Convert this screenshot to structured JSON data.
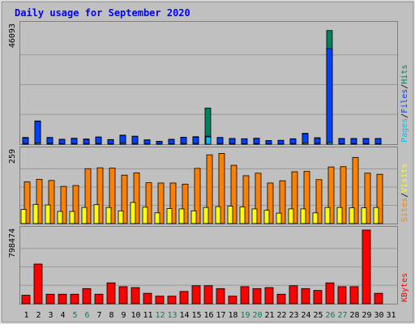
{
  "title": "Daily usage for September 2020",
  "colors": {
    "frame": "#c0c0c0",
    "plot_bg": "#c0c0c0",
    "grid": "#9a9a9a",
    "title": "#0000ff",
    "hits": "#00805c",
    "files": "#0040ff",
    "pages": "#00c0ff",
    "visits": "#ffff00",
    "sites": "#ff8000",
    "kbytes": "#ff0000",
    "axis_label": "#000000",
    "weekend_label": "#00805c"
  },
  "chart_data": [
    {
      "type": "bar",
      "name": "hits-files-pages",
      "categories": [
        "1",
        "2",
        "3",
        "4",
        "5",
        "6",
        "7",
        "8",
        "9",
        "10",
        "11",
        "12",
        "13",
        "14",
        "15",
        "16",
        "17",
        "18",
        "19",
        "20",
        "21",
        "22",
        "23",
        "24",
        "25",
        "26",
        "27",
        "28",
        "29",
        "30",
        "31"
      ],
      "ymax_label": "46093",
      "ylim": [
        0,
        46093
      ],
      "legend": [
        "Pages",
        "/",
        "Files",
        "/",
        "Hits"
      ],
      "series": [
        {
          "name": "Hits",
          "color": "#00805c",
          "values": [
            2600,
            9000,
            2600,
            1900,
            2300,
            2000,
            2800,
            1800,
            3500,
            3100,
            1700,
            1100,
            1900,
            2700,
            2900,
            14000,
            2600,
            2200,
            2100,
            2300,
            1400,
            1500,
            2100,
            4200,
            2500,
            44000,
            2200,
            2200,
            2200,
            2200,
            0
          ]
        },
        {
          "name": "Files",
          "color": "#0040ff",
          "values": [
            2400,
            8800,
            2500,
            1800,
            2200,
            1800,
            2700,
            1700,
            3300,
            3000,
            1600,
            1000,
            1800,
            2600,
            2700,
            3100,
            2500,
            2100,
            2000,
            2200,
            1300,
            1400,
            2000,
            4000,
            2300,
            37000,
            2100,
            2100,
            2100,
            2100,
            0
          ]
        },
        {
          "name": "Pages",
          "color": "#00c0ff",
          "values": [
            300,
            500,
            300,
            200,
            250,
            200,
            300,
            200,
            400,
            300,
            200,
            100,
            200,
            300,
            300,
            2800,
            300,
            250,
            250,
            250,
            150,
            150,
            250,
            500,
            300,
            600,
            250,
            250,
            250,
            250,
            0
          ]
        }
      ]
    },
    {
      "type": "bar",
      "name": "sites-visits",
      "categories": [
        "1",
        "2",
        "3",
        "4",
        "5",
        "6",
        "7",
        "8",
        "9",
        "10",
        "11",
        "12",
        "13",
        "14",
        "15",
        "16",
        "17",
        "18",
        "19",
        "20",
        "21",
        "22",
        "23",
        "24",
        "25",
        "26",
        "27",
        "28",
        "29",
        "30",
        "31"
      ],
      "ymax_label": "259",
      "ylim": [
        0,
        259
      ],
      "legend": [
        "Sites",
        "/",
        "Visits"
      ],
      "series": [
        {
          "name": "Visits",
          "color": "#ffff00",
          "values": [
            50,
            68,
            66,
            43,
            43,
            57,
            67,
            57,
            45,
            75,
            58,
            38,
            53,
            52,
            45,
            57,
            60,
            62,
            59,
            52,
            47,
            37,
            52,
            52,
            38,
            57,
            57,
            56,
            56,
            57,
            0
          ]
        },
        {
          "name": "Sites",
          "color": "#ff8000",
          "values": [
            148,
            157,
            153,
            132,
            135,
            195,
            198,
            197,
            172,
            180,
            145,
            144,
            144,
            140,
            196,
            244,
            249,
            207,
            170,
            179,
            144,
            152,
            184,
            185,
            156,
            201,
            202,
            235,
            179,
            175,
            0
          ]
        }
      ]
    },
    {
      "type": "bar",
      "name": "kbytes",
      "categories": [
        "1",
        "2",
        "3",
        "4",
        "5",
        "6",
        "7",
        "8",
        "9",
        "10",
        "11",
        "12",
        "13",
        "14",
        "15",
        "16",
        "17",
        "18",
        "19",
        "20",
        "21",
        "22",
        "23",
        "24",
        "25",
        "26",
        "27",
        "28",
        "29",
        "30",
        "31"
      ],
      "ymax_label": "798474",
      "ylim": [
        0,
        798474
      ],
      "legend": [
        "KBytes"
      ],
      "series": [
        {
          "name": "KBytes",
          "color": "#ff0000",
          "values": [
            92000,
            430000,
            103000,
            103000,
            103000,
            164000,
            103000,
            226000,
            185000,
            175000,
            113000,
            82000,
            82000,
            133000,
            195000,
            195000,
            164000,
            82000,
            185000,
            164000,
            175000,
            103000,
            195000,
            164000,
            144000,
            226000,
            185000,
            185000,
            798474,
            113000,
            0
          ]
        }
      ]
    }
  ],
  "x_labels": [
    "1",
    "2",
    "3",
    "4",
    "5",
    "6",
    "7",
    "8",
    "9",
    "10",
    "11",
    "12",
    "13",
    "14",
    "15",
    "16",
    "17",
    "18",
    "19",
    "20",
    "21",
    "22",
    "23",
    "24",
    "25",
    "26",
    "27",
    "28",
    "29",
    "30",
    "31"
  ],
  "weekend_days": [
    "5",
    "6",
    "12",
    "13",
    "19",
    "20",
    "26",
    "27"
  ]
}
